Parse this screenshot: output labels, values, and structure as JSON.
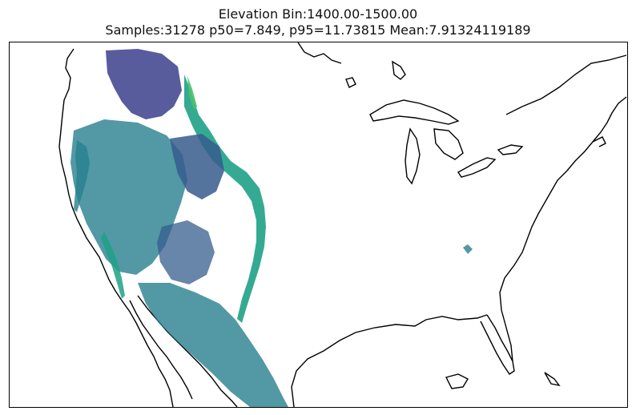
{
  "title": {
    "line1": "Elevation Bin:1400.00-1500.00",
    "line2": "Samples:31278 p50=7.849, p95=11.73815 Mean:7.91324119189"
  },
  "map": {
    "type": "raster-scatter-map",
    "region": "Contiguous United States",
    "colormap": [
      "#3b3f8c",
      "#365c8d",
      "#277f8e",
      "#1fa187",
      "#4ac16d"
    ]
  }
}
